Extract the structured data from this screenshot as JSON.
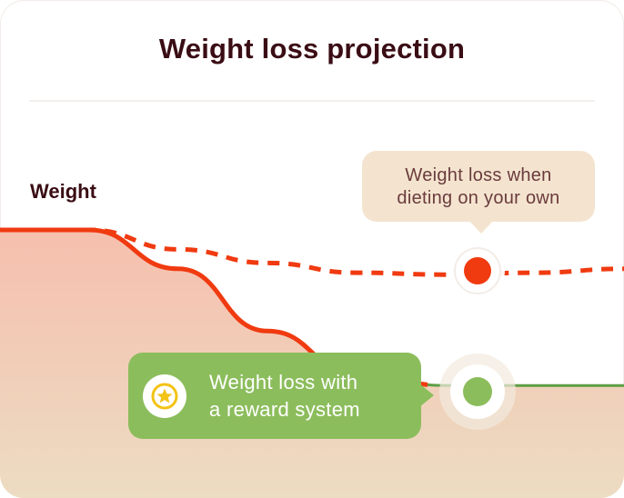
{
  "title": "Weight loss projection",
  "colors": {
    "heading": "#3a0d14",
    "own_line": "#f03a10",
    "reward_line": "#5e9e45",
    "reward_bubble": "#8cbd5c",
    "own_bubble": "#f4e4cf",
    "area_top": "#f6bfae",
    "area_bottom": "#ecdcc2"
  },
  "chart_data": {
    "type": "line",
    "ylabel": "Weight",
    "xlabel": "",
    "series": [
      {
        "name": "Weight loss when dieting on your own",
        "style": "dashed",
        "marker": "end-of-period dot",
        "values": [
          1.0,
          1.0,
          0.9,
          0.83,
          0.78,
          0.77,
          0.78,
          0.8
        ]
      },
      {
        "name": "Weight loss with a reward system",
        "style": "solid",
        "marker": "end-of-period dot",
        "values": [
          1.0,
          1.0,
          0.8,
          0.48,
          0.26,
          0.2,
          0.2,
          0.2
        ]
      }
    ],
    "callouts": {
      "own": [
        "Weight loss when",
        "dieting on your own"
      ],
      "reward": [
        "Weight loss with",
        "a reward system"
      ]
    },
    "reward_badge_icon": "star-icon",
    "grid": false,
    "legend": "callouts"
  }
}
